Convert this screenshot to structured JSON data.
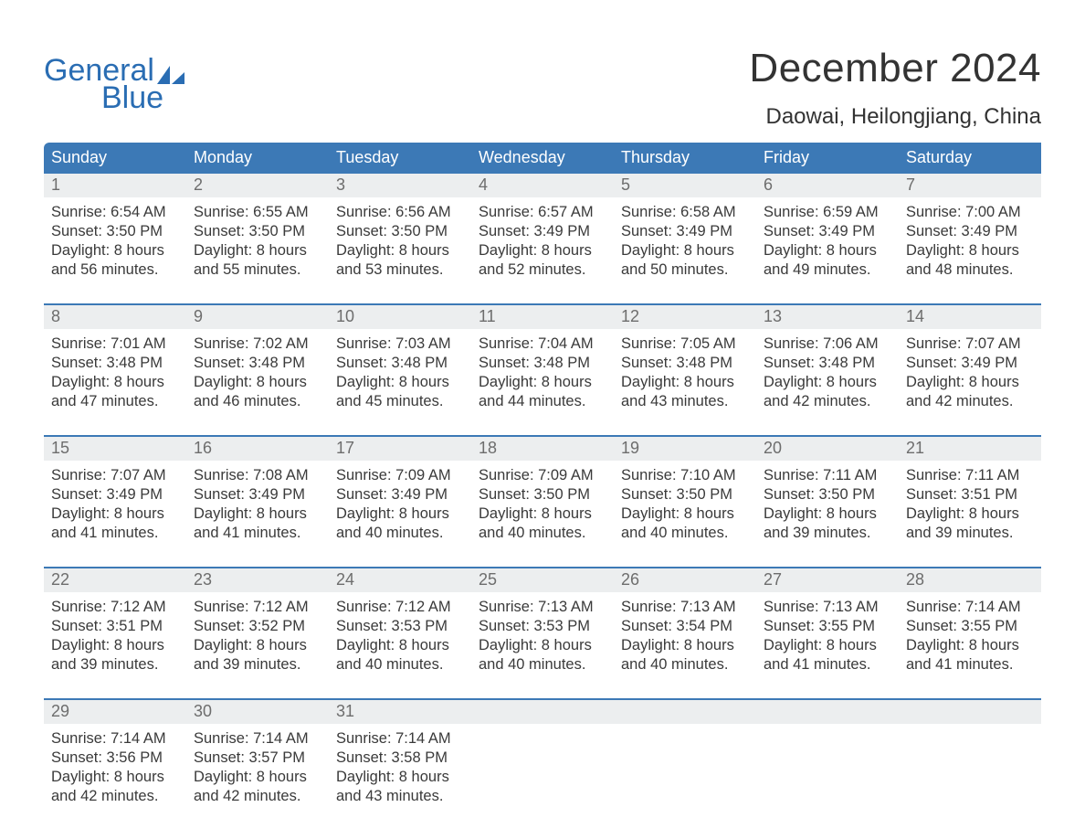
{
  "logo": {
    "line1": "General",
    "line2": "Blue"
  },
  "title": "December 2024",
  "subtitle": "Daowai, Heilongjiang, China",
  "weekdays": [
    "Sunday",
    "Monday",
    "Tuesday",
    "Wednesday",
    "Thursday",
    "Friday",
    "Saturday"
  ],
  "colors": {
    "header_bg": "#3c79b6",
    "header_text": "#ffffff",
    "numrow_bg": "#eceeef",
    "numrow_text": "#6d6d6d",
    "body_text": "#3a3a3a",
    "logo_color": "#2a6db3",
    "rule_color": "#3c79b6",
    "background": "#ffffff"
  },
  "typography": {
    "title_fontsize": 44,
    "subtitle_fontsize": 24,
    "weekday_fontsize": 18,
    "daynum_fontsize": 18,
    "body_fontsize": 16.5
  },
  "weeks": [
    [
      {
        "n": "1",
        "sr": "Sunrise: 6:54 AM",
        "ss": "Sunset: 3:50 PM",
        "d1": "Daylight: 8 hours",
        "d2": "and 56 minutes."
      },
      {
        "n": "2",
        "sr": "Sunrise: 6:55 AM",
        "ss": "Sunset: 3:50 PM",
        "d1": "Daylight: 8 hours",
        "d2": "and 55 minutes."
      },
      {
        "n": "3",
        "sr": "Sunrise: 6:56 AM",
        "ss": "Sunset: 3:50 PM",
        "d1": "Daylight: 8 hours",
        "d2": "and 53 minutes."
      },
      {
        "n": "4",
        "sr": "Sunrise: 6:57 AM",
        "ss": "Sunset: 3:49 PM",
        "d1": "Daylight: 8 hours",
        "d2": "and 52 minutes."
      },
      {
        "n": "5",
        "sr": "Sunrise: 6:58 AM",
        "ss": "Sunset: 3:49 PM",
        "d1": "Daylight: 8 hours",
        "d2": "and 50 minutes."
      },
      {
        "n": "6",
        "sr": "Sunrise: 6:59 AM",
        "ss": "Sunset: 3:49 PM",
        "d1": "Daylight: 8 hours",
        "d2": "and 49 minutes."
      },
      {
        "n": "7",
        "sr": "Sunrise: 7:00 AM",
        "ss": "Sunset: 3:49 PM",
        "d1": "Daylight: 8 hours",
        "d2": "and 48 minutes."
      }
    ],
    [
      {
        "n": "8",
        "sr": "Sunrise: 7:01 AM",
        "ss": "Sunset: 3:48 PM",
        "d1": "Daylight: 8 hours",
        "d2": "and 47 minutes."
      },
      {
        "n": "9",
        "sr": "Sunrise: 7:02 AM",
        "ss": "Sunset: 3:48 PM",
        "d1": "Daylight: 8 hours",
        "d2": "and 46 minutes."
      },
      {
        "n": "10",
        "sr": "Sunrise: 7:03 AM",
        "ss": "Sunset: 3:48 PM",
        "d1": "Daylight: 8 hours",
        "d2": "and 45 minutes."
      },
      {
        "n": "11",
        "sr": "Sunrise: 7:04 AM",
        "ss": "Sunset: 3:48 PM",
        "d1": "Daylight: 8 hours",
        "d2": "and 44 minutes."
      },
      {
        "n": "12",
        "sr": "Sunrise: 7:05 AM",
        "ss": "Sunset: 3:48 PM",
        "d1": "Daylight: 8 hours",
        "d2": "and 43 minutes."
      },
      {
        "n": "13",
        "sr": "Sunrise: 7:06 AM",
        "ss": "Sunset: 3:48 PM",
        "d1": "Daylight: 8 hours",
        "d2": "and 42 minutes."
      },
      {
        "n": "14",
        "sr": "Sunrise: 7:07 AM",
        "ss": "Sunset: 3:49 PM",
        "d1": "Daylight: 8 hours",
        "d2": "and 42 minutes."
      }
    ],
    [
      {
        "n": "15",
        "sr": "Sunrise: 7:07 AM",
        "ss": "Sunset: 3:49 PM",
        "d1": "Daylight: 8 hours",
        "d2": "and 41 minutes."
      },
      {
        "n": "16",
        "sr": "Sunrise: 7:08 AM",
        "ss": "Sunset: 3:49 PM",
        "d1": "Daylight: 8 hours",
        "d2": "and 41 minutes."
      },
      {
        "n": "17",
        "sr": "Sunrise: 7:09 AM",
        "ss": "Sunset: 3:49 PM",
        "d1": "Daylight: 8 hours",
        "d2": "and 40 minutes."
      },
      {
        "n": "18",
        "sr": "Sunrise: 7:09 AM",
        "ss": "Sunset: 3:50 PM",
        "d1": "Daylight: 8 hours",
        "d2": "and 40 minutes."
      },
      {
        "n": "19",
        "sr": "Sunrise: 7:10 AM",
        "ss": "Sunset: 3:50 PM",
        "d1": "Daylight: 8 hours",
        "d2": "and 40 minutes."
      },
      {
        "n": "20",
        "sr": "Sunrise: 7:11 AM",
        "ss": "Sunset: 3:50 PM",
        "d1": "Daylight: 8 hours",
        "d2": "and 39 minutes."
      },
      {
        "n": "21",
        "sr": "Sunrise: 7:11 AM",
        "ss": "Sunset: 3:51 PM",
        "d1": "Daylight: 8 hours",
        "d2": "and 39 minutes."
      }
    ],
    [
      {
        "n": "22",
        "sr": "Sunrise: 7:12 AM",
        "ss": "Sunset: 3:51 PM",
        "d1": "Daylight: 8 hours",
        "d2": "and 39 minutes."
      },
      {
        "n": "23",
        "sr": "Sunrise: 7:12 AM",
        "ss": "Sunset: 3:52 PM",
        "d1": "Daylight: 8 hours",
        "d2": "and 39 minutes."
      },
      {
        "n": "24",
        "sr": "Sunrise: 7:12 AM",
        "ss": "Sunset: 3:53 PM",
        "d1": "Daylight: 8 hours",
        "d2": "and 40 minutes."
      },
      {
        "n": "25",
        "sr": "Sunrise: 7:13 AM",
        "ss": "Sunset: 3:53 PM",
        "d1": "Daylight: 8 hours",
        "d2": "and 40 minutes."
      },
      {
        "n": "26",
        "sr": "Sunrise: 7:13 AM",
        "ss": "Sunset: 3:54 PM",
        "d1": "Daylight: 8 hours",
        "d2": "and 40 minutes."
      },
      {
        "n": "27",
        "sr": "Sunrise: 7:13 AM",
        "ss": "Sunset: 3:55 PM",
        "d1": "Daylight: 8 hours",
        "d2": "and 41 minutes."
      },
      {
        "n": "28",
        "sr": "Sunrise: 7:14 AM",
        "ss": "Sunset: 3:55 PM",
        "d1": "Daylight: 8 hours",
        "d2": "and 41 minutes."
      }
    ],
    [
      {
        "n": "29",
        "sr": "Sunrise: 7:14 AM",
        "ss": "Sunset: 3:56 PM",
        "d1": "Daylight: 8 hours",
        "d2": "and 42 minutes."
      },
      {
        "n": "30",
        "sr": "Sunrise: 7:14 AM",
        "ss": "Sunset: 3:57 PM",
        "d1": "Daylight: 8 hours",
        "d2": "and 42 minutes."
      },
      {
        "n": "31",
        "sr": "Sunrise: 7:14 AM",
        "ss": "Sunset: 3:58 PM",
        "d1": "Daylight: 8 hours",
        "d2": "and 43 minutes."
      },
      {
        "n": "",
        "sr": "",
        "ss": "",
        "d1": "",
        "d2": ""
      },
      {
        "n": "",
        "sr": "",
        "ss": "",
        "d1": "",
        "d2": ""
      },
      {
        "n": "",
        "sr": "",
        "ss": "",
        "d1": "",
        "d2": ""
      },
      {
        "n": "",
        "sr": "",
        "ss": "",
        "d1": "",
        "d2": ""
      }
    ]
  ]
}
